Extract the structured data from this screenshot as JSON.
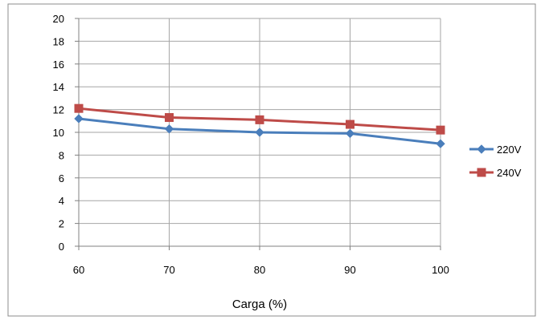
{
  "chart_data": {
    "type": "line",
    "title": "",
    "xlabel": "Carga (%)",
    "ylabel": "",
    "x": [
      60,
      70,
      80,
      90,
      100
    ],
    "xlim": [
      60,
      100
    ],
    "ylim": [
      0,
      20
    ],
    "y_ticks": [
      0,
      2,
      4,
      6,
      8,
      10,
      12,
      14,
      16,
      18,
      20
    ],
    "x_ticks": [
      60,
      70,
      80,
      90,
      100
    ],
    "grid": true,
    "legend": "right",
    "series": [
      {
        "name": "220V",
        "values": [
          11.2,
          10.3,
          10.0,
          9.9,
          9.0
        ],
        "color": "#4a7ebb",
        "marker": "diamond"
      },
      {
        "name": "240V",
        "values": [
          12.1,
          11.3,
          11.1,
          10.7,
          10.2
        ],
        "color": "#be4b48",
        "marker": "square"
      }
    ]
  }
}
